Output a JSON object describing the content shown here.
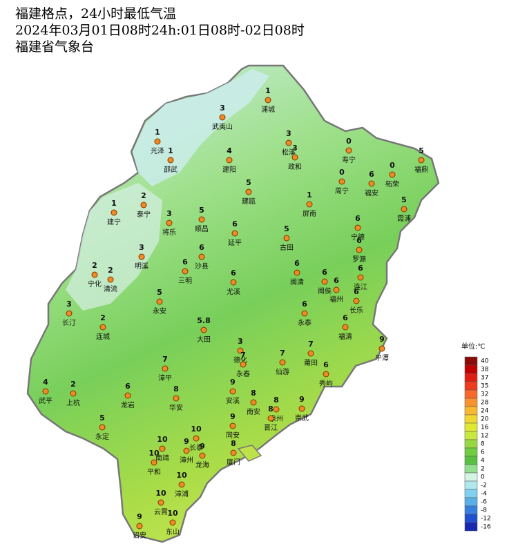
{
  "header": {
    "title": "福建格点，24小时最低气温",
    "subtitle": "2024年03月01日08时24h:01日08时-02日08时",
    "source": "福建省气象台"
  },
  "stations": [
    {
      "name": "浦城",
      "value": 1
    },
    {
      "name": "武夷山",
      "value": 3
    },
    {
      "name": "光泽",
      "value": 1
    },
    {
      "name": "邵武",
      "value": 1
    },
    {
      "name": "建阳",
      "value": 4
    },
    {
      "name": "松溪",
      "value": 3
    },
    {
      "name": "政和",
      "value": 3
    },
    {
      "name": "寿宁",
      "value": 0
    },
    {
      "name": "福鼎",
      "value": 5
    },
    {
      "name": "柘荣",
      "value": 0
    },
    {
      "name": "周宁",
      "value": 0
    },
    {
      "name": "福安",
      "value": 6
    },
    {
      "name": "建瓯",
      "value": 5
    },
    {
      "name": "泰宁",
      "value": 2
    },
    {
      "name": "建宁",
      "value": 1
    },
    {
      "name": "将乐",
      "value": 3
    },
    {
      "name": "顺昌",
      "value": 5
    },
    {
      "name": "屏南",
      "value": 1
    },
    {
      "name": "霞浦",
      "value": 5
    },
    {
      "name": "宁德",
      "value": 6
    },
    {
      "name": "延平",
      "value": 6
    },
    {
      "name": "古田",
      "value": 5
    },
    {
      "name": "罗源",
      "value": 6
    },
    {
      "name": "明溪",
      "value": 3
    },
    {
      "name": "沙县",
      "value": 6
    },
    {
      "name": "三明",
      "value": 6
    },
    {
      "name": "宁化",
      "value": 2
    },
    {
      "name": "清流",
      "value": 2
    },
    {
      "name": "闽清",
      "value": 6
    },
    {
      "name": "闽侯",
      "value": 6
    },
    {
      "name": "连江",
      "value": 6
    },
    {
      "name": "福州",
      "value": 6
    },
    {
      "name": "永安",
      "value": 5
    },
    {
      "name": "尤溪",
      "value": 6
    },
    {
      "name": "长乐",
      "value": 6
    },
    {
      "name": "长汀",
      "value": 3
    },
    {
      "name": "永泰",
      "value": 6
    },
    {
      "name": "连城",
      "value": 2
    },
    {
      "name": "大田",
      "value": 5.8
    },
    {
      "name": "福清",
      "value": 6
    },
    {
      "name": "平潭",
      "value": 9
    },
    {
      "name": "德化",
      "value": 3
    },
    {
      "name": "永春",
      "value": 7
    },
    {
      "name": "漳平",
      "value": 7
    },
    {
      "name": "仙游",
      "value": 7
    },
    {
      "name": "莆田",
      "value": 7
    },
    {
      "name": "秀屿",
      "value": 6
    },
    {
      "name": "武平",
      "value": 4
    },
    {
      "name": "上杭",
      "value": 2
    },
    {
      "name": "龙岩",
      "value": 6
    },
    {
      "name": "华安",
      "value": 8
    },
    {
      "name": "安溪",
      "value": 9
    },
    {
      "name": "南安",
      "value": 8
    },
    {
      "name": "泉州",
      "value": 8
    },
    {
      "name": "崇武",
      "value": 9
    },
    {
      "name": "晋江",
      "value": 8
    },
    {
      "name": "永定",
      "value": 5
    },
    {
      "name": "同安",
      "value": 9
    },
    {
      "name": "长泰",
      "value": 10
    },
    {
      "name": "南靖",
      "value": 10
    },
    {
      "name": "漳州",
      "value": 9
    },
    {
      "name": "龙海",
      "value": 9
    },
    {
      "name": "厦门",
      "value": 8
    },
    {
      "name": "平和",
      "value": 10
    },
    {
      "name": "漳浦",
      "value": 10
    },
    {
      "name": "云霄",
      "value": 10
    },
    {
      "name": "诏安",
      "value": 9
    },
    {
      "name": "东山",
      "value": 10
    }
  ],
  "legend": {
    "unit": "单位:℃",
    "levels": [
      {
        "value": 40,
        "color": "#8b0a0a"
      },
      {
        "value": 38,
        "color": "#c00000"
      },
      {
        "value": 37,
        "color": "#e01e10"
      },
      {
        "value": 35,
        "color": "#f03c1e"
      },
      {
        "value": 32,
        "color": "#f8682a"
      },
      {
        "value": 28,
        "color": "#f8922e"
      },
      {
        "value": 24,
        "color": "#f8b830"
      },
      {
        "value": 20,
        "color": "#f0d830"
      },
      {
        "value": 16,
        "color": "#e0e830"
      },
      {
        "value": 12,
        "color": "#c8e840"
      },
      {
        "value": 8,
        "color": "#98d840"
      },
      {
        "value": 6,
        "color": "#70cc40"
      },
      {
        "value": 4,
        "color": "#58c040"
      },
      {
        "value": 2,
        "color": "#90e090"
      },
      {
        "value": 0,
        "color": "#d4f4e4"
      },
      {
        "value": -2,
        "color": "#b0e8f0"
      },
      {
        "value": -4,
        "color": "#80d0f0"
      },
      {
        "value": -6,
        "color": "#58b0e8"
      },
      {
        "value": -8,
        "color": "#3880e0"
      },
      {
        "value": -12,
        "color": "#2050d0"
      },
      {
        "value": -16,
        "color": "#1828b0"
      }
    ]
  }
}
